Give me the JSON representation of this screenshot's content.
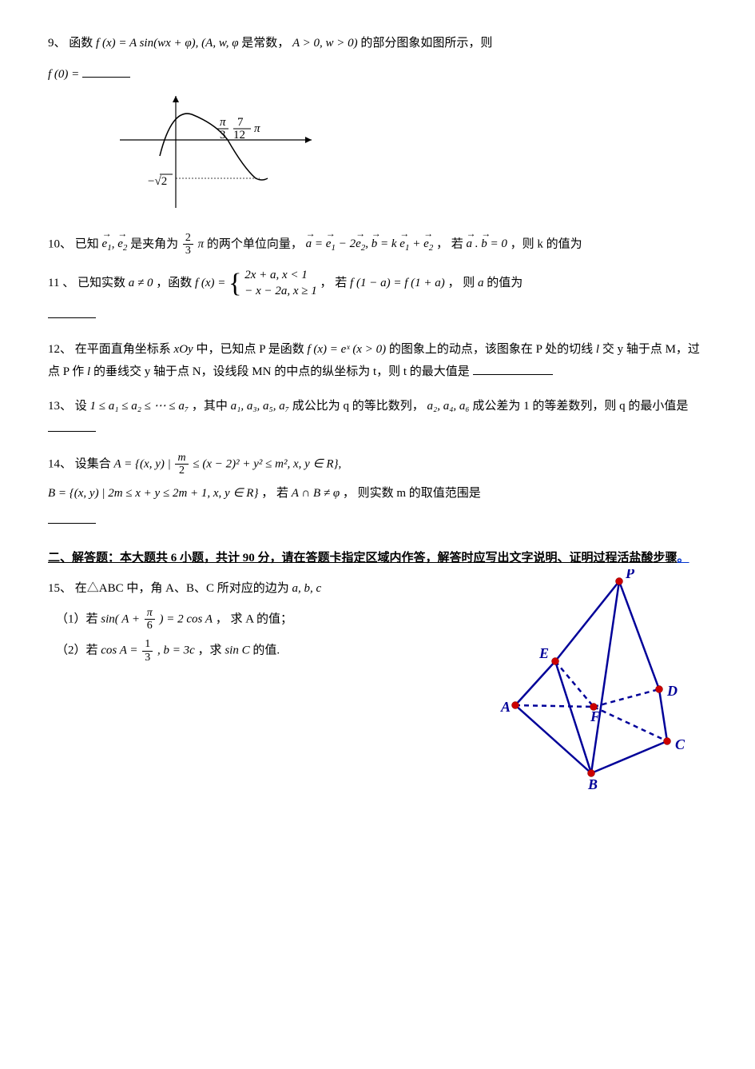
{
  "q9": {
    "num": "9、",
    "text_a": "函数",
    "fx": "f (x) = A sin(wx + φ), (A, w, φ",
    "text_b": "是常数，",
    "cond": "A > 0, w > 0)",
    "text_c": "的部分图象如图所示，则",
    "f0": "f (0) =",
    "graph": {
      "xlabel1": "π",
      "xlabel1_den": "3",
      "xlabel2_num": "7",
      "xlabel2_den": "12",
      "xlabel2_pi": "π",
      "ylabel": "−√2",
      "axis_color": "#000000",
      "curve_color": "#000000"
    }
  },
  "q10": {
    "num": "10、",
    "text_a": "已知",
    "e1": "e",
    "e1_sub": "1",
    "e2": "e",
    "e2_sub": "2",
    "text_b": "是夹角为",
    "frac_num": "2",
    "frac_den": "3",
    "pi": "π",
    "text_c": "的两个单位向量，",
    "a_eq": "a = e₁ − 2e₂, b = k e₁ + e₂",
    "text_d": "，  若",
    "ab": "a . b = 0",
    "text_e": "，则 k 的值为"
  },
  "q11": {
    "num": "11 、",
    "text_a": "已知实数",
    "a_ne_0": "a ≠ 0",
    "text_b": "，函数",
    "fx": "f (x) =",
    "case1": "2x + a, x < 1",
    "case2": "− x − 2a, x ≥ 1",
    "text_c": "， 若",
    "eq": "f (1 − a) = f (1 + a)",
    "text_d": "， 则",
    "a_var": "a",
    "text_e": "的值为"
  },
  "q12": {
    "num": "12、",
    "text_a": "在平面直角坐标系",
    "xoy": "xOy",
    "text_b": "中，已知点 P 是函数",
    "fx": "f (x) = eˣ (x > 0)",
    "text_c": "的图象上的动点，该图象在 P 处的切线",
    "l1": "l",
    "text_d": "交 y 轴于点 M，过点 P 作",
    "l2": "l",
    "text_e": "的垂线交 y 轴于点 N，设线段 MN 的中点的纵坐标为 t，则 t 的最大值是"
  },
  "q13": {
    "num": "13、",
    "text_a": "设",
    "ineq": "1 ≤ a₁ ≤ a₂ ≤ ⋯ ≤ a₇",
    "text_b": "，其中",
    "ser1": "a₁, a₃, a₅, a₇",
    "text_c": "成公比为 q 的等比数列，",
    "ser2": "a₂, a₄, a₆",
    "text_d": "成公差为 1 的等差数列，则 q 的最小值是"
  },
  "q14": {
    "num": "14、",
    "text_a": "设集合",
    "setA": "A = {(x, y) |",
    "m_num": "m",
    "m_den": "2",
    "setA_mid": "≤ (x − 2)² + y² ≤ m², x, y ∈ R}",
    "setB": "B = {(x, y) | 2m ≤ x + y ≤ 2m + 1, x, y ∈ R}",
    "text_b": "，  若",
    "cond": "A ∩ B ≠ φ",
    "text_c": "，   则实数  m  的取值范围是"
  },
  "section2": {
    "title": "二、解答题：本大题共 6 小题，共计 90 分，请在答题卡指定区域内作答，解答时应写出文字说明、证明过程活盐酸步骤",
    "dot": "。"
  },
  "q15": {
    "num": "15、",
    "text_a": "在△ABC 中，角 A、B、C 所对应的边为",
    "abc": "a, b, c",
    "p1_label": "（1）若",
    "p1_eq": "sin( A +",
    "p1_frac_num": "π",
    "p1_frac_den": "6",
    "p1_eq_r": ") = 2 cos A",
    "p1_text": "， 求 A 的值；",
    "p2_label": "（2）若",
    "p2_eq_l": "cos A =",
    "p2_frac_num": "1",
    "p2_frac_den": "3",
    "p2_eq_r": ", b = 3c",
    "p2_text": "，求",
    "p2_sinc": "sin C",
    "p2_text2": "的值."
  },
  "geom": {
    "labels": {
      "P": "P",
      "E": "E",
      "D": "D",
      "A": "A",
      "F": "F",
      "C": "C",
      "B": "B"
    },
    "positions": {
      "P": [
        150,
        15
      ],
      "E": [
        70,
        115
      ],
      "D": [
        200,
        150
      ],
      "A": [
        20,
        170
      ],
      "F": [
        118,
        172
      ],
      "C": [
        210,
        215
      ],
      "B": [
        115,
        255
      ]
    },
    "dot_color": "#cc0000",
    "line_color": "#000099",
    "line_width": 2.5,
    "label_color": "#000099",
    "label_fontsize": 18,
    "label_font": "Times New Roman, serif",
    "label_style": "italic",
    "label_weight": "bold"
  },
  "colors": {
    "text": "#000000",
    "background": "#ffffff"
  }
}
